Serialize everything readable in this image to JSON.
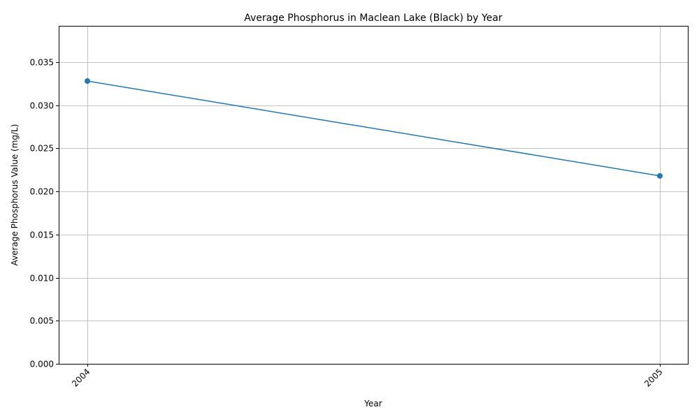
{
  "chart_data": {
    "type": "line",
    "title": "Average Phosphorus in Maclean Lake (Black) by Year",
    "xlabel": "Year",
    "ylabel": "Average Phosphorus Value (mg/L)",
    "categories": [
      "2004",
      "2005"
    ],
    "series": [
      {
        "values": [
          0.0328,
          0.0218
        ],
        "color": "#1f77b4",
        "marker": "circle"
      }
    ],
    "ylim": [
      0,
      0.0392
    ],
    "yticks": [
      0.0,
      0.005,
      0.01,
      0.015,
      0.02,
      0.025,
      0.03,
      0.035
    ],
    "ytick_labels": [
      "0.000",
      "0.005",
      "0.010",
      "0.015",
      "0.020",
      "0.025",
      "0.030",
      "0.035"
    ],
    "grid": true,
    "legend": "none"
  }
}
